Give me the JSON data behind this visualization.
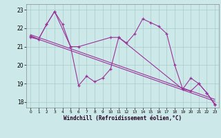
{
  "xlabel": "Windchill (Refroidissement éolien,°C)",
  "background_color": "#cce8e8",
  "grid_color": "#aacccc",
  "line_color": "#993399",
  "xlim": [
    -0.5,
    23.5
  ],
  "ylim": [
    17.7,
    23.3
  ],
  "yticks": [
    18,
    19,
    20,
    21,
    22,
    23
  ],
  "xticks": [
    0,
    1,
    2,
    3,
    4,
    5,
    6,
    7,
    8,
    9,
    10,
    11,
    12,
    13,
    14,
    15,
    16,
    17,
    18,
    19,
    20,
    21,
    22,
    23
  ],
  "series1_x": [
    0,
    1,
    2,
    3,
    4,
    5,
    6,
    7,
    8,
    9,
    10,
    11,
    12,
    13,
    14,
    15,
    16,
    17,
    18,
    19,
    20,
    21,
    22,
    23
  ],
  "series1_y": [
    21.5,
    21.4,
    22.2,
    22.9,
    22.2,
    21.0,
    18.9,
    19.4,
    19.1,
    19.3,
    19.8,
    21.5,
    21.2,
    21.7,
    22.5,
    22.3,
    22.1,
    21.7,
    20.0,
    18.7,
    19.3,
    19.0,
    18.5,
    17.9
  ],
  "series2_x": [
    0,
    1,
    2,
    3,
    5,
    6,
    10,
    11,
    19,
    20,
    21,
    22,
    23
  ],
  "series2_y": [
    21.6,
    21.4,
    22.2,
    22.9,
    21.0,
    21.0,
    21.5,
    21.5,
    18.7,
    18.6,
    19.0,
    18.5,
    17.85
  ],
  "line3_x": [
    0,
    23
  ],
  "line3_y": [
    21.55,
    18.05
  ],
  "line4_x": [
    0,
    23
  ],
  "line4_y": [
    21.65,
    18.15
  ]
}
